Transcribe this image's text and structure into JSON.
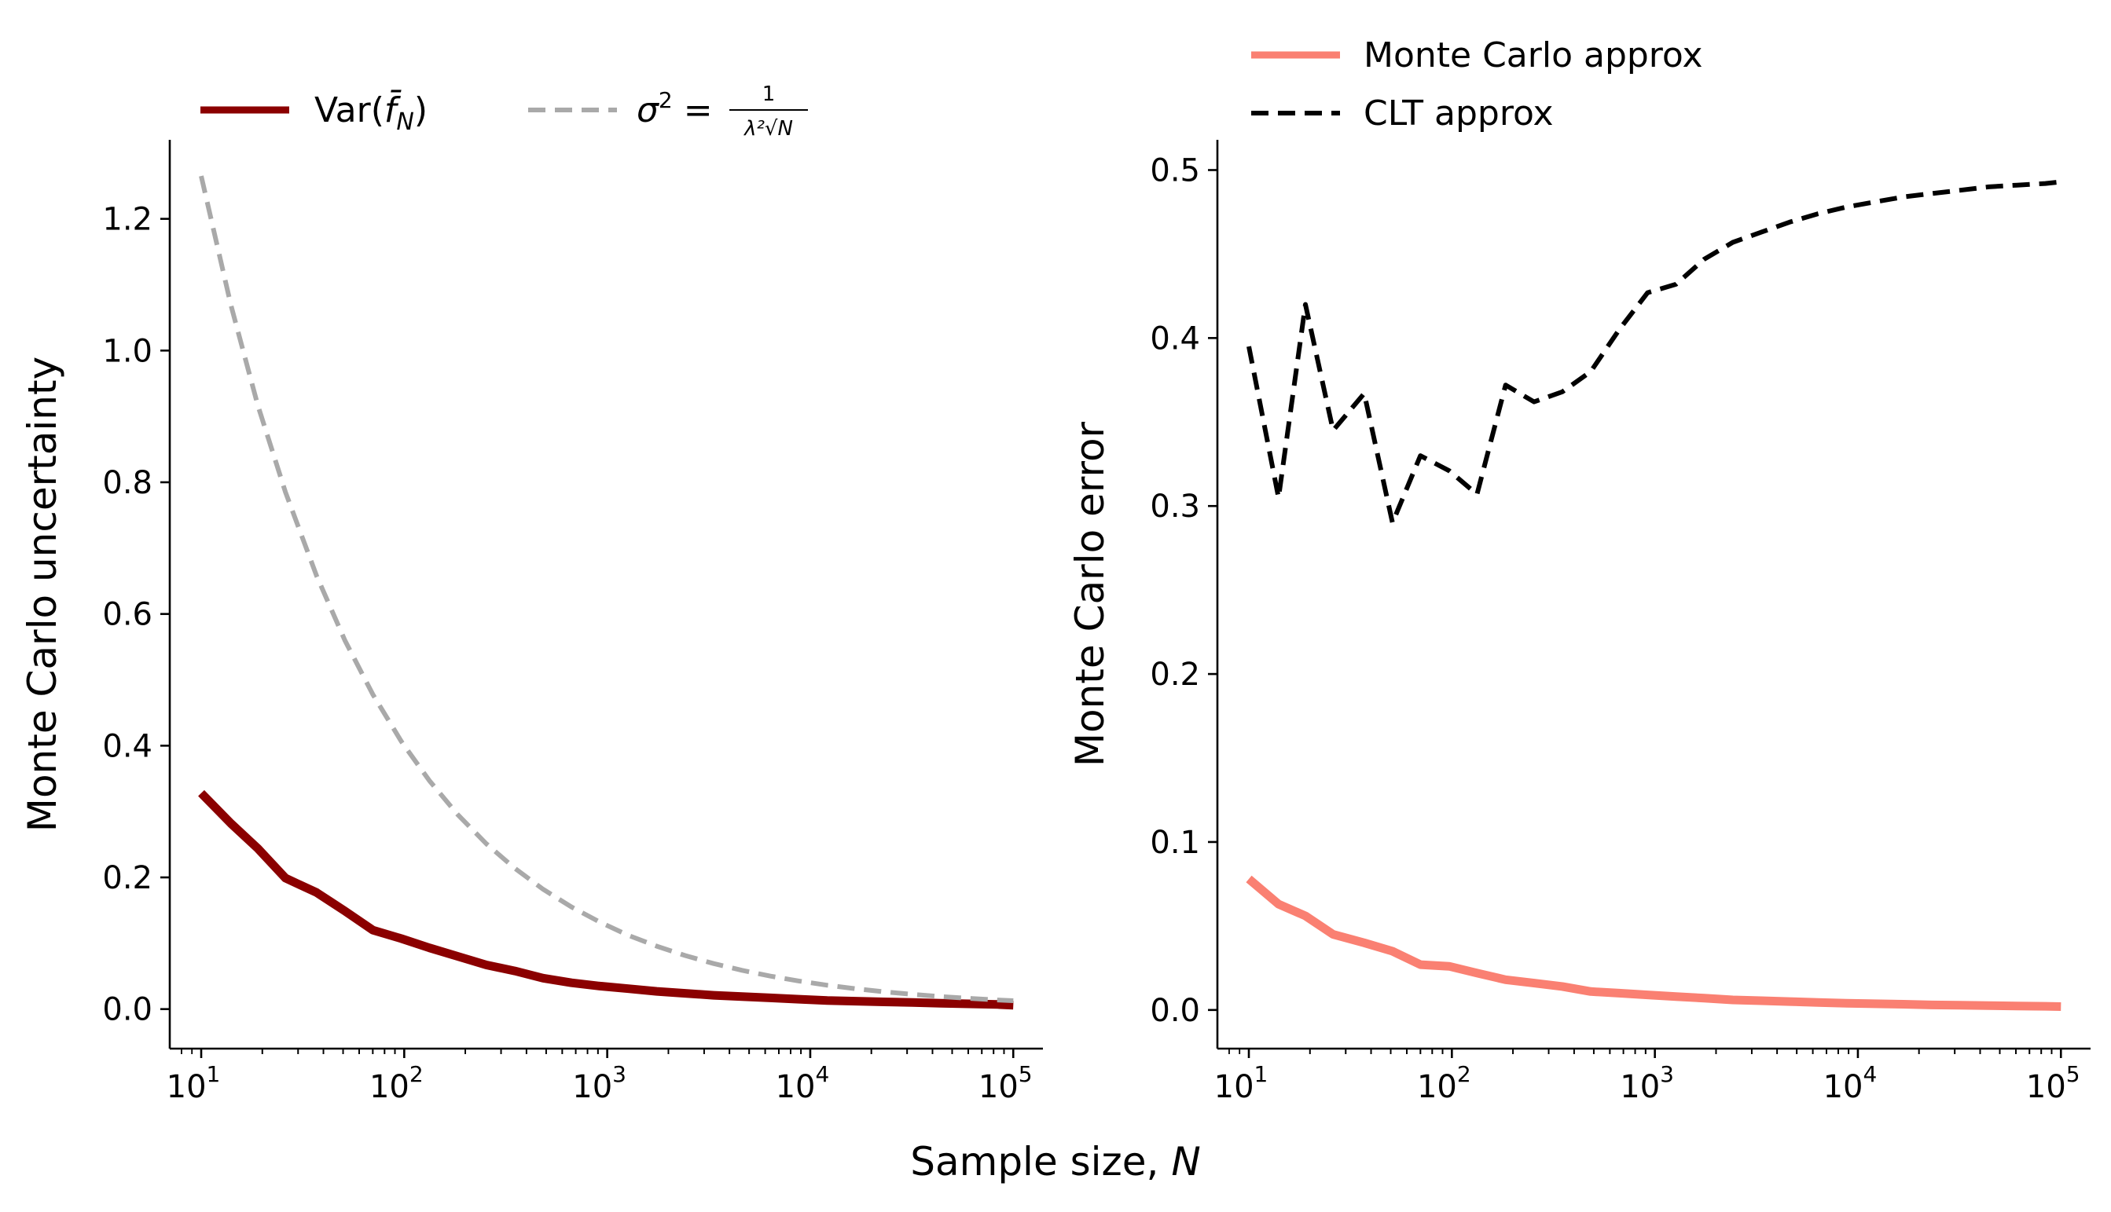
{
  "figure": {
    "xlabel": "Sample size, N"
  },
  "chart_data": [
    {
      "type": "line",
      "xscale": "log",
      "xlim": [
        7,
        140000
      ],
      "ylim": [
        -0.06,
        1.32
      ],
      "x_ticks": [
        10,
        100,
        1000,
        10000,
        100000
      ],
      "x_tick_labels": [
        {
          "base": "10",
          "exp": "1"
        },
        {
          "base": "10",
          "exp": "2"
        },
        {
          "base": "10",
          "exp": "3"
        },
        {
          "base": "10",
          "exp": "4"
        },
        {
          "base": "10",
          "exp": "5"
        }
      ],
      "y_ticks": [
        0.0,
        0.2,
        0.4,
        0.6,
        0.8,
        1.0,
        1.2
      ],
      "y_tick_labels": [
        "0.0",
        "0.2",
        "0.4",
        "0.6",
        "0.8",
        "1.0",
        "1.2"
      ],
      "ylabel": "Monte Carlo uncertainty",
      "grid": false,
      "legend_placement": "top, above plot, horizontal",
      "series": [
        {
          "name": "Var(f̄N)",
          "legend_label": {
            "var": "Var(",
            "f": "f̄",
            "sub": "N",
            "close": ")"
          },
          "color": "#8b0000",
          "style": "solid",
          "x": [
            10,
            14,
            19,
            26,
            37,
            51,
            70,
            97,
            133,
            184,
            254,
            350,
            483,
            667,
            921,
            1271,
            1754,
            2421,
            3342,
            4613,
            6367,
            8789,
            12131,
            16744,
            23112,
            31901,
            44033,
            60777,
            83891,
            100000
          ],
          "values": [
            0.328,
            0.282,
            0.244,
            0.199,
            0.177,
            0.149,
            0.12,
            0.107,
            0.093,
            0.08,
            0.067,
            0.058,
            0.047,
            0.04,
            0.035,
            0.031,
            0.027,
            0.024,
            0.021,
            0.019,
            0.017,
            0.015,
            0.013,
            0.012,
            0.011,
            0.01,
            0.009,
            0.008,
            0.007,
            0.006
          ]
        },
        {
          "name": "σ² = 1/(λ²√N)",
          "legend_label": {
            "lhs": "σ",
            "sup": "2",
            "eq": " = ",
            "num": "1",
            "den": "λ²√N"
          },
          "color": "#a9a9a9",
          "style": "dashed",
          "x": [
            10,
            14,
            19,
            26,
            37,
            51,
            70,
            97,
            133,
            184,
            254,
            350,
            483,
            667,
            921,
            1271,
            1754,
            2421,
            3342,
            4613,
            6367,
            8789,
            12131,
            16744,
            23112,
            31901,
            44033,
            60777,
            83891,
            100000
          ],
          "values": [
            1.265,
            1.069,
            0.917,
            0.785,
            0.658,
            0.56,
            0.478,
            0.406,
            0.347,
            0.295,
            0.251,
            0.214,
            0.182,
            0.155,
            0.132,
            0.112,
            0.0955,
            0.0813,
            0.0692,
            0.0589,
            0.0501,
            0.0427,
            0.0363,
            0.0309,
            0.0263,
            0.0224,
            0.0191,
            0.0162,
            0.0138,
            0.0127
          ]
        }
      ]
    },
    {
      "type": "line",
      "xscale": "log",
      "xlim": [
        7,
        140000
      ],
      "ylim": [
        -0.023,
        0.518
      ],
      "x_ticks": [
        10,
        100,
        1000,
        10000,
        100000
      ],
      "x_tick_labels": [
        {
          "base": "10",
          "exp": "1"
        },
        {
          "base": "10",
          "exp": "2"
        },
        {
          "base": "10",
          "exp": "3"
        },
        {
          "base": "10",
          "exp": "4"
        },
        {
          "base": "10",
          "exp": "5"
        }
      ],
      "y_ticks": [
        0.0,
        0.1,
        0.2,
        0.3,
        0.4,
        0.5
      ],
      "y_tick_labels": [
        "0.0",
        "0.1",
        "0.2",
        "0.3",
        "0.4",
        "0.5"
      ],
      "ylabel": "Monte Carlo error",
      "grid": false,
      "legend_placement": "top-left, above plot, stacked",
      "series": [
        {
          "name": "Monte Carlo approx",
          "color": "#fa8072",
          "style": "solid",
          "x": [
            10,
            14,
            19,
            26,
            37,
            51,
            70,
            97,
            133,
            184,
            254,
            350,
            483,
            667,
            921,
            1271,
            1754,
            2421,
            3342,
            4613,
            6367,
            8789,
            12131,
            16744,
            23112,
            31901,
            44033,
            60777,
            83891,
            100000
          ],
          "values": [
            0.078,
            0.063,
            0.056,
            0.045,
            0.04,
            0.035,
            0.027,
            0.026,
            0.022,
            0.018,
            0.016,
            0.014,
            0.011,
            0.01,
            0.009,
            0.008,
            0.007,
            0.006,
            0.0055,
            0.005,
            0.0045,
            0.004,
            0.0037,
            0.0034,
            0.003,
            0.0028,
            0.0026,
            0.0024,
            0.0022,
            0.002
          ]
        },
        {
          "name": "CLT approx",
          "color": "#000000",
          "style": "dashed",
          "x": [
            10,
            14,
            19,
            26,
            37,
            51,
            70,
            97,
            133,
            184,
            254,
            350,
            483,
            667,
            921,
            1271,
            1754,
            2421,
            3342,
            4613,
            6367,
            8789,
            12131,
            16744,
            23112,
            31901,
            44033,
            60777,
            83891,
            100000
          ],
          "values": [
            0.395,
            0.305,
            0.42,
            0.345,
            0.367,
            0.29,
            0.33,
            0.321,
            0.307,
            0.372,
            0.362,
            0.368,
            0.38,
            0.405,
            0.427,
            0.432,
            0.447,
            0.457,
            0.463,
            0.469,
            0.474,
            0.478,
            0.481,
            0.484,
            0.486,
            0.488,
            0.49,
            0.491,
            0.492,
            0.493
          ]
        }
      ]
    }
  ]
}
